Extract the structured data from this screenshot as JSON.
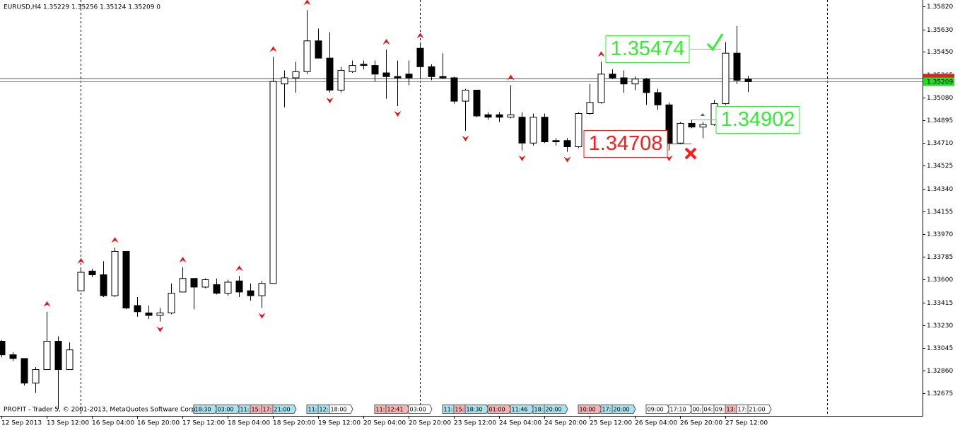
{
  "chart_data": {
    "type": "candlestick",
    "title": "EURUSD,H4  1.35229 1.35256 1.35124 1.35209  0",
    "footer": "PROFIT - Trader 5, © 2001-2013, MetaQuotes Software Corp.",
    "categories": [
      "12 Sep 2013",
      null,
      null,
      null,
      "13 Sep 12:00",
      null,
      null,
      null,
      "16 Sep 04:00",
      null,
      null,
      null,
      "16 Sep 20:00",
      null,
      null,
      null,
      "17 Sep 12:00",
      null,
      null,
      null,
      "18 Sep 04:00",
      null,
      null,
      null,
      "18 Sep 20:00",
      null,
      null,
      null,
      "19 Sep 12:00",
      null,
      null,
      null,
      "20 Sep 04:00",
      null,
      null,
      null,
      "20 Sep 20:00",
      null,
      null,
      null,
      "23 Sep 12:00",
      null,
      null,
      null,
      "24 Sep 04:00",
      null,
      null,
      null,
      "24 Sep 20:00",
      null,
      null,
      null,
      "25 Sep 12:00",
      null,
      null,
      null,
      "26 Sep 04:00",
      null,
      null,
      null,
      "26 Sep 20:00",
      null,
      null,
      null,
      "27 Sep 12:00",
      null,
      null
    ],
    "open": [
      1.331,
      1.3299,
      1.3296,
      1.3276,
      1.3287,
      1.331,
      1.3287,
      1.3351,
      1.3367,
      1.3364,
      1.3347,
      1.3383,
      1.3339,
      1.3333,
      1.3331,
      1.3333,
      1.335,
      1.3361,
      1.3354,
      1.3356,
      1.3349,
      1.3359,
      1.3351,
      1.3347,
      1.3357,
      1.3519,
      1.3524,
      1.3529,
      1.3554,
      1.354,
      1.3514,
      1.3529,
      1.3535,
      1.3534,
      1.3528,
      1.3525,
      1.3527,
      1.3548,
      1.3533,
      1.3525,
      1.3524,
      1.3505,
      1.3514,
      1.3494,
      1.3494,
      1.3492,
      1.3492,
      1.3471,
      1.3492,
      1.3473,
      1.3473,
      1.3468,
      1.3495,
      1.3504,
      1.3527,
      1.3524,
      1.3519,
      1.3523,
      1.3512,
      1.3502,
      1.3471,
      1.3487,
      1.3484,
      1.3486,
      1.3503,
      1.3544,
      1.35229
    ],
    "high": [
      1.3311,
      1.3301,
      1.3296,
      1.3289,
      1.3334,
      1.3314,
      1.3309,
      1.3369,
      1.3369,
      1.3375,
      1.3386,
      1.3383,
      1.3346,
      1.3339,
      1.3337,
      1.3357,
      1.337,
      1.3361,
      1.3361,
      1.3361,
      1.336,
      1.3363,
      1.3357,
      1.3359,
      1.3541,
      1.353,
      1.3537,
      1.3579,
      1.3564,
      1.3561,
      1.3533,
      1.3538,
      1.3538,
      1.3538,
      1.3547,
      1.3538,
      1.3538,
      1.3552,
      1.3535,
      1.3544,
      1.3525,
      1.3515,
      1.3514,
      1.3496,
      1.3496,
      1.3518,
      1.3496,
      1.3495,
      1.3495,
      1.3475,
      1.3475,
      1.3496,
      1.3519,
      1.3537,
      1.3531,
      1.353,
      1.3525,
      1.3524,
      1.3515,
      1.3504,
      1.3488,
      1.349,
      1.3488,
      1.3506,
      1.3553,
      1.3566,
      1.35256
    ],
    "low": [
      1.3297,
      1.3294,
      1.3274,
      1.3268,
      1.3287,
      1.3255,
      1.3287,
      1.3351,
      1.3362,
      1.3346,
      1.3346,
      1.3336,
      1.333,
      1.3328,
      1.3326,
      1.3332,
      1.335,
      1.3336,
      1.3353,
      1.3348,
      1.3347,
      1.3346,
      1.3343,
      1.3337,
      1.3357,
      1.35,
      1.3512,
      1.3527,
      1.354,
      1.3512,
      1.3512,
      1.3528,
      1.3531,
      1.3521,
      1.3507,
      1.3501,
      1.3518,
      1.3523,
      1.3522,
      1.3523,
      1.3503,
      1.3481,
      1.3492,
      1.349,
      1.3488,
      1.3491,
      1.3465,
      1.3469,
      1.3471,
      1.3469,
      1.3464,
      1.3467,
      1.3494,
      1.3503,
      1.3523,
      1.3512,
      1.3514,
      1.3502,
      1.3498,
      1.3465,
      1.347,
      1.3483,
      1.3475,
      1.3485,
      1.3502,
      1.3519,
      1.35124
    ],
    "close": [
      1.3299,
      1.3296,
      1.3276,
      1.3287,
      1.331,
      1.3287,
      1.3303,
      1.3366,
      1.3364,
      1.3347,
      1.3383,
      1.3337,
      1.3334,
      1.3331,
      1.3333,
      1.3349,
      1.3361,
      1.3354,
      1.336,
      1.3349,
      1.3358,
      1.335,
      1.3347,
      1.3357,
      1.3521,
      1.3524,
      1.3529,
      1.3554,
      1.354,
      1.3514,
      1.353,
      1.3534,
      1.3534,
      1.3527,
      1.3525,
      1.3524,
      1.3524,
      1.3533,
      1.3525,
      1.3524,
      1.3505,
      1.3514,
      1.3493,
      1.3492,
      1.3492,
      1.3494,
      1.3471,
      1.3492,
      1.3472,
      1.3472,
      1.3468,
      1.3495,
      1.3504,
      1.3527,
      1.3524,
      1.3519,
      1.3523,
      1.3512,
      1.3502,
      1.3471,
      1.3487,
      1.3484,
      1.3486,
      1.3503,
      1.3544,
      1.3522,
      1.35209
    ],
    "ylim": [
      1.32494,
      1.35872
    ],
    "yticks": [
      {
        "value": 1.3582,
        "label": "1.35820"
      },
      {
        "value": 1.3563,
        "label": "1.35630"
      },
      {
        "value": 1.3545,
        "label": "1.35450"
      },
      1.35265,
      {
        "value": 1.3508,
        "label": "1.35080"
      },
      1.34895,
      {
        "value": 1.3471,
        "label": "1.34710"
      },
      1.34525,
      {
        "value": 1.3434,
        "label": "1.34340"
      },
      1.34155,
      {
        "value": 1.3397,
        "label": "1.33970"
      },
      1.33785,
      {
        "value": 1.336,
        "label": "1.33600"
      },
      1.33415,
      {
        "value": 1.3323,
        "label": "1.33230"
      },
      1.33045,
      {
        "value": 1.3286,
        "label": "1.32860"
      },
      1.32675
    ],
    "bid": 1.35209,
    "ask": 1.35232,
    "fractals_up": [
      4,
      7,
      10,
      16,
      21,
      24,
      27,
      34,
      37,
      45,
      53
    ],
    "fractals_down": [
      14,
      23,
      29,
      35,
      41,
      46,
      50,
      59
    ],
    "levels": [
      {
        "value": 1.35474,
        "color": "#33ee33"
      },
      {
        "value": 1.34902,
        "color": "#33ee33"
      },
      {
        "value": 1.34708,
        "color": "#ff1a1a"
      }
    ],
    "signals": [
      {
        "text": "18:30",
        "bar": 17,
        "color": "#a8e2ee"
      },
      {
        "text": "03:00",
        "bar": 19,
        "color": "#a8e2ee"
      },
      {
        "text": "11:",
        "bar": 21,
        "color": "#a8e2ee"
      },
      {
        "text": "15:",
        "bar": 22,
        "color": "#f6b2b2"
      },
      {
        "text": "17:",
        "bar": 23,
        "color": "#f6b2b2"
      },
      {
        "text": "21:00",
        "bar": 24,
        "color": "#a8e2ee"
      },
      {
        "text": "11:",
        "bar": 27,
        "color": "#a8e2ee"
      },
      {
        "text": "12:",
        "bar": 28,
        "color": "#a8e2ee"
      },
      {
        "text": "18:00",
        "bar": 29,
        "color": "#ffffff"
      },
      {
        "text": "11:",
        "bar": 33,
        "color": "#f6b2b2"
      },
      {
        "text": "12:41",
        "bar": 34,
        "color": "#f6b2b2"
      },
      {
        "text": "03:00",
        "bar": 36,
        "color": "#ffffff"
      },
      {
        "text": "11:",
        "bar": 39,
        "color": "#a8e2ee"
      },
      {
        "text": "15:",
        "bar": 40,
        "color": "#f6b2b2"
      },
      {
        "text": "18:30",
        "bar": 41,
        "color": "#a8e2ee"
      },
      {
        "text": "01:00",
        "bar": 43,
        "color": "#f6b2b2"
      },
      {
        "text": "11:46",
        "bar": 45,
        "color": "#a8e2ee"
      },
      {
        "text": "18:",
        "bar": 47,
        "color": "#a8e2ee"
      },
      {
        "text": "20:00",
        "bar": 48,
        "color": "#a8e2ee"
      },
      {
        "text": "10:00",
        "bar": 51,
        "color": "#f6b2b2"
      },
      {
        "text": "17:",
        "bar": 53,
        "color": "#a8e2ee"
      },
      {
        "text": "20:00",
        "bar": 54,
        "color": "#a8e2ee"
      },
      {
        "text": "09:00",
        "bar": 57,
        "color": "#ffffff"
      },
      {
        "text": "17:10",
        "bar": 59,
        "color": "#ffffff"
      },
      {
        "text": "00:",
        "bar": 61,
        "color": "#ffffff"
      },
      {
        "text": "04:",
        "bar": 62,
        "color": "#ffffff"
      },
      {
        "text": "09:",
        "bar": 63,
        "color": "#ffffff"
      },
      {
        "text": "13:",
        "bar": 64,
        "color": "#f6b2b2"
      },
      {
        "text": "17:",
        "bar": 65,
        "color": "#ffffff"
      },
      {
        "text": "21:00",
        "bar": 66,
        "color": "#ffffff"
      }
    ]
  }
}
